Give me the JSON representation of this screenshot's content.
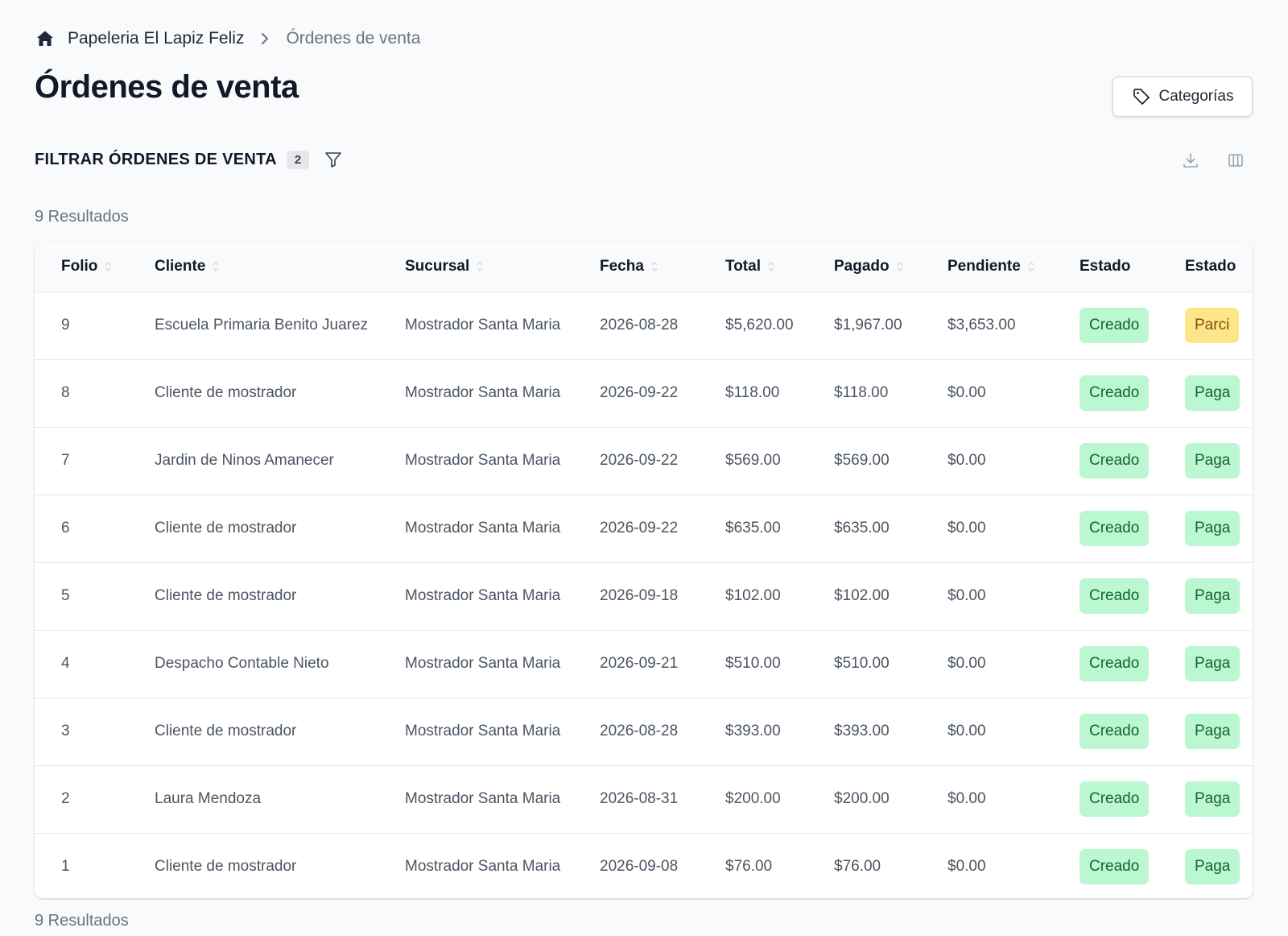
{
  "breadcrumb": {
    "root": "Papeleria El Lapiz Feliz",
    "current": "Órdenes de venta"
  },
  "page": {
    "title": "Órdenes de venta",
    "categories_button": "Categorías"
  },
  "filter": {
    "title": "FILTRAR ÓRDENES DE VENTA",
    "count": "2"
  },
  "results_label": "9 Resultados",
  "table": {
    "columns": [
      "Folio",
      "Cliente",
      "Sucursal",
      "Fecha",
      "Total",
      "Pagado",
      "Pendiente",
      "Estado",
      "Estado"
    ],
    "rows": [
      {
        "folio": "9",
        "cliente": "Escuela Primaria Benito Juarez",
        "sucursal": "Mostrador Santa Maria",
        "fecha": "2026-08-28",
        "total": "$5,620.00",
        "pagado": "$1,967.00",
        "pendiente": "$3,653.00",
        "estado": "Creado",
        "estado_pago": "Parci"
      },
      {
        "folio": "8",
        "cliente": "Cliente de mostrador",
        "sucursal": "Mostrador Santa Maria",
        "fecha": "2026-09-22",
        "total": "$118.00",
        "pagado": "$118.00",
        "pendiente": "$0.00",
        "estado": "Creado",
        "estado_pago": "Paga"
      },
      {
        "folio": "7",
        "cliente": "Jardin de Ninos Amanecer",
        "sucursal": "Mostrador Santa Maria",
        "fecha": "2026-09-22",
        "total": "$569.00",
        "pagado": "$569.00",
        "pendiente": "$0.00",
        "estado": "Creado",
        "estado_pago": "Paga"
      },
      {
        "folio": "6",
        "cliente": "Cliente de mostrador",
        "sucursal": "Mostrador Santa Maria",
        "fecha": "2026-09-22",
        "total": "$635.00",
        "pagado": "$635.00",
        "pendiente": "$0.00",
        "estado": "Creado",
        "estado_pago": "Paga"
      },
      {
        "folio": "5",
        "cliente": "Cliente de mostrador",
        "sucursal": "Mostrador Santa Maria",
        "fecha": "2026-09-18",
        "total": "$102.00",
        "pagado": "$102.00",
        "pendiente": "$0.00",
        "estado": "Creado",
        "estado_pago": "Paga"
      },
      {
        "folio": "4",
        "cliente": "Despacho Contable Nieto",
        "sucursal": "Mostrador Santa Maria",
        "fecha": "2026-09-21",
        "total": "$510.00",
        "pagado": "$510.00",
        "pendiente": "$0.00",
        "estado": "Creado",
        "estado_pago": "Paga"
      },
      {
        "folio": "3",
        "cliente": "Cliente de mostrador",
        "sucursal": "Mostrador Santa Maria",
        "fecha": "2026-08-28",
        "total": "$393.00",
        "pagado": "$393.00",
        "pendiente": "$0.00",
        "estado": "Creado",
        "estado_pago": "Paga"
      },
      {
        "folio": "2",
        "cliente": "Laura Mendoza",
        "sucursal": "Mostrador Santa Maria",
        "fecha": "2026-08-31",
        "total": "$200.00",
        "pagado": "$200.00",
        "pendiente": "$0.00",
        "estado": "Creado",
        "estado_pago": "Paga"
      },
      {
        "folio": "1",
        "cliente": "Cliente de mostrador",
        "sucursal": "Mostrador Santa Maria",
        "fecha": "2026-09-08",
        "total": "$76.00",
        "pagado": "$76.00",
        "pendiente": "$0.00",
        "estado": "Creado",
        "estado_pago": "Paga"
      }
    ]
  },
  "icons": {
    "home": "home-icon",
    "separator": "chevron-right-icon",
    "categories": "tag-icon",
    "filter": "funnel-icon",
    "download": "download-icon",
    "columns": "columns-icon",
    "sort": "sort-icon"
  },
  "colors": {
    "badge_created_bg": "#bbf7d0",
    "badge_created_text": "#166534",
    "badge_partial_bg": "#fde68a",
    "badge_partial_text": "#854d0e"
  }
}
